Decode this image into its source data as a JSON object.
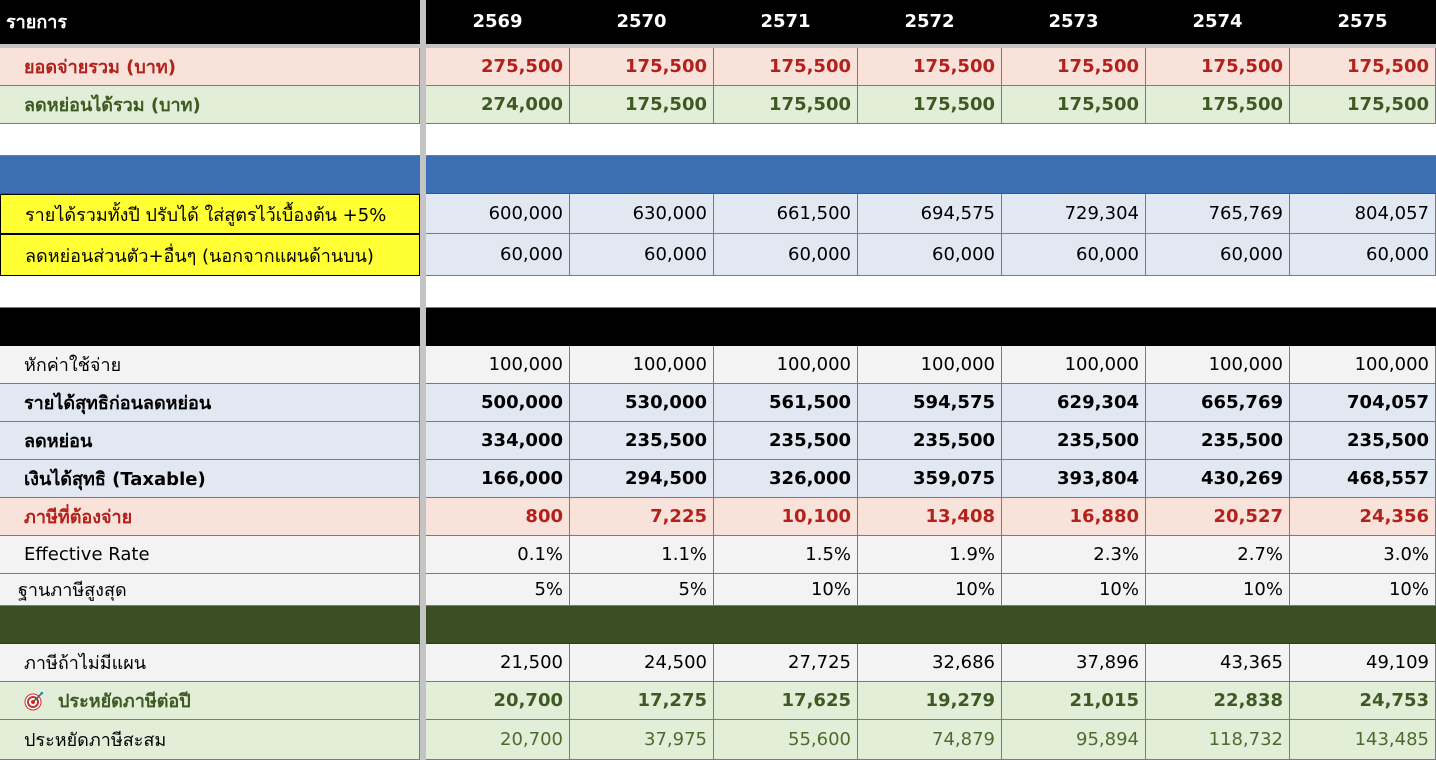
{
  "header": {
    "label": "รายการ",
    "years": [
      "2569",
      "2570",
      "2571",
      "2572",
      "2573",
      "2574",
      "2575"
    ]
  },
  "rows": {
    "total_paid": {
      "label": "ยอดจ่ายรวม (บาท)",
      "values": [
        "275,500",
        "175,500",
        "175,500",
        "175,500",
        "175,500",
        "175,500",
        "175,500"
      ]
    },
    "total_deductible": {
      "label": "ลดหย่อนได้รวม (บาท)",
      "values": [
        "274,000",
        "175,500",
        "175,500",
        "175,500",
        "175,500",
        "175,500",
        "175,500"
      ]
    },
    "annual_income": {
      "label": "รายได้รวมทั้งปี ปรับได้ ใส่สูตรไว้เบื้องต้น +5%",
      "values": [
        "600,000",
        "630,000",
        "661,500",
        "694,575",
        "729,304",
        "765,769",
        "804,057"
      ]
    },
    "personal_deduction": {
      "label": "ลดหย่อนส่วนตัว+อื่นๆ (นอกจากแผนด้านบน)",
      "values": [
        "60,000",
        "60,000",
        "60,000",
        "60,000",
        "60,000",
        "60,000",
        "60,000"
      ]
    },
    "expenses": {
      "label": "หักค่าใช้จ่าย",
      "values": [
        "100,000",
        "100,000",
        "100,000",
        "100,000",
        "100,000",
        "100,000",
        "100,000"
      ]
    },
    "net_income_before": {
      "label": "รายได้สุทธิก่อนลดหย่อน",
      "values": [
        "500,000",
        "530,000",
        "561,500",
        "594,575",
        "629,304",
        "665,769",
        "704,057"
      ]
    },
    "deductions": {
      "label": "ลดหย่อน",
      "values": [
        "334,000",
        "235,500",
        "235,500",
        "235,500",
        "235,500",
        "235,500",
        "235,500"
      ]
    },
    "taxable": {
      "label": "เงินได้สุทธิ (Taxable)",
      "values": [
        "166,000",
        "294,500",
        "326,000",
        "359,075",
        "393,804",
        "430,269",
        "468,557"
      ]
    },
    "tax_payable": {
      "label": "ภาษีที่ต้องจ่าย",
      "values": [
        "800",
        "7,225",
        "10,100",
        "13,408",
        "16,880",
        "20,527",
        "24,356"
      ]
    },
    "effective_rate": {
      "label": "Effective Rate",
      "values": [
        "0.1%",
        "1.1%",
        "1.5%",
        "1.9%",
        "2.3%",
        "2.7%",
        "3.0%"
      ]
    },
    "top_bracket": {
      "label": "ฐานภาษีสูงสุด",
      "values": [
        "5%",
        "5%",
        "10%",
        "10%",
        "10%",
        "10%",
        "10%"
      ]
    },
    "tax_without_plan": {
      "label": "ภาษีถ้าไม่มีแผน",
      "values": [
        "21,500",
        "24,500",
        "27,725",
        "32,686",
        "37,896",
        "43,365",
        "49,109"
      ]
    },
    "tax_saved": {
      "label": "ประหยัดภาษีต่อปี",
      "icon": "target-icon",
      "values": [
        "20,700",
        "17,275",
        "17,625",
        "19,279",
        "21,015",
        "22,838",
        "24,753"
      ]
    },
    "tax_saved_cumulative": {
      "label": "ประหยัดภาษีสะสม",
      "values": [
        "20,700",
        "37,975",
        "55,600",
        "74,879",
        "95,894",
        "118,732",
        "143,485"
      ]
    }
  },
  "colors": {
    "header_bg": "#000000",
    "salmon": "#f9e2d9",
    "red_text": "#b3211c",
    "green": "#e3eed9",
    "green_text": "#3e5a22",
    "blue_band": "#3c6fb3",
    "dark_green_band": "#3a4f24",
    "yellow": "#ffff33",
    "light_blue": "#e2e8f2",
    "gray": "#f3f3f3"
  }
}
